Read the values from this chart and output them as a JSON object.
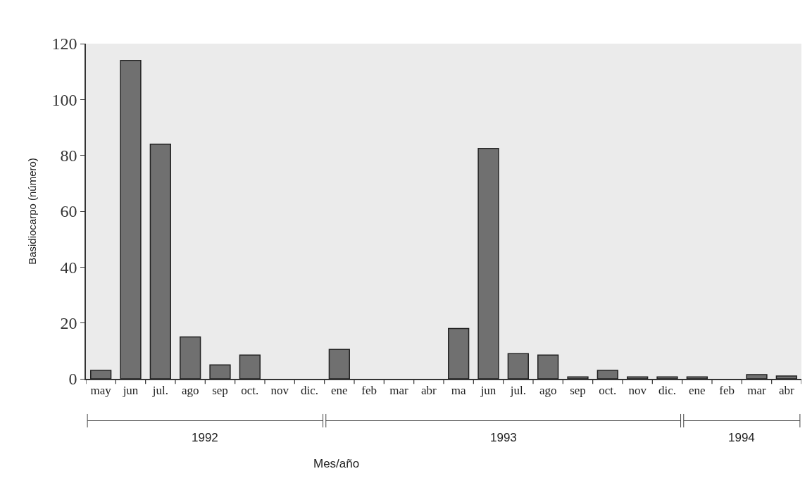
{
  "chart_data": {
    "type": "bar",
    "categories": [
      "may",
      "jun",
      "jul.",
      "ago",
      "sep",
      "oct.",
      "nov",
      "dic.",
      "ene",
      "feb",
      "mar",
      "abr",
      "ma",
      "jun",
      "jul.",
      "ago",
      "sep",
      "oct.",
      "nov",
      "dic.",
      "ene",
      "feb",
      "mar",
      "abr"
    ],
    "values": [
      3,
      114,
      84,
      15,
      5,
      8.5,
      0,
      0,
      10.5,
      0,
      0,
      0,
      18,
      82.5,
      9,
      8.5,
      0.7,
      3,
      0.7,
      0.7,
      0.7,
      0,
      1.5,
      1
    ],
    "color": "#707070",
    "xlabel": "Mes/año",
    "ylabel": "Basidiocarpo (número)",
    "annotations": [
      "1992",
      "1993",
      "1994"
    ],
    "ylim": [
      0,
      120
    ],
    "yticks": [
      0,
      20,
      40,
      60,
      80,
      100,
      120
    ],
    "grid": false,
    "legend": false
  }
}
